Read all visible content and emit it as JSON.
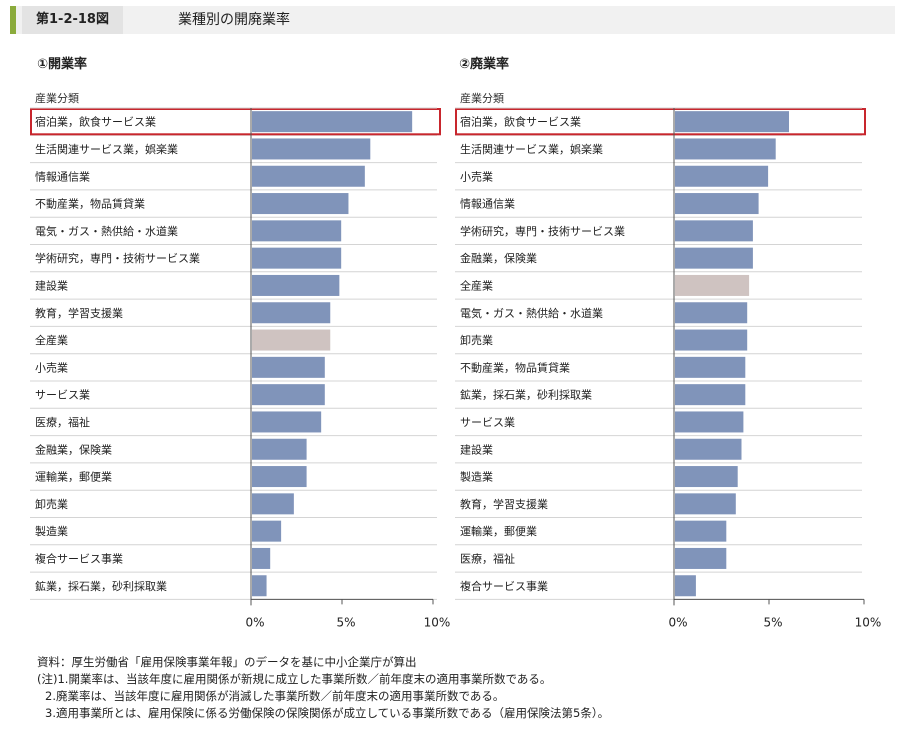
{
  "header": {
    "figure_number": "第1-2-18図",
    "title": "業種別の開廃業率"
  },
  "colors": {
    "bar": "#8094ba",
    "highlight_bar": "#cfc3c1",
    "highlight_box": "#c8262d",
    "header_accent": "#8bab3c"
  },
  "chart_data": [
    {
      "type": "bar",
      "orientation": "horizontal",
      "title": "①開業率",
      "category_header": "産業分類",
      "categories": [
        "宿泊業，飲食サービス業",
        "生活関連サービス業，娯楽業",
        "情報通信業",
        "不動産業，物品賃貸業",
        "電気・ガス・熱供給・水道業",
        "学術研究，専門・技術サービス業",
        "建設業",
        "教育，学習支援業",
        "全産業",
        "小売業",
        "サービス業",
        "医療，福祉",
        "金融業，保険業",
        "運輸業，郵便業",
        "卸売業",
        "製造業",
        "複合サービス事業",
        "鉱業，採石業，砂利採取業"
      ],
      "values": [
        8.8,
        6.5,
        6.2,
        5.3,
        4.9,
        4.9,
        4.8,
        4.3,
        4.3,
        4.0,
        4.0,
        3.8,
        3.0,
        3.0,
        2.3,
        1.6,
        1.0,
        0.8
      ],
      "highlight_category": "全産業",
      "boxed_category": "宿泊業，飲食サービス業",
      "xlim": [
        0,
        10
      ],
      "xticks": [
        "0%",
        "5%",
        "10%"
      ],
      "grid": "horizontal separators"
    },
    {
      "type": "bar",
      "orientation": "horizontal",
      "title": "②廃業率",
      "category_header": "産業分類",
      "categories": [
        "宿泊業，飲食サービス業",
        "生活関連サービス業，娯楽業",
        "小売業",
        "情報通信業",
        "学術研究，専門・技術サービス業",
        "金融業，保険業",
        "全産業",
        "電気・ガス・熱供給・水道業",
        "卸売業",
        "不動産業，物品賃貸業",
        "鉱業，採石業，砂利採取業",
        "サービス業",
        "建設業",
        "製造業",
        "教育，学習支援業",
        "運輸業，郵便業",
        "医療，福祉",
        "複合サービス事業"
      ],
      "values": [
        6.0,
        5.3,
        4.9,
        4.4,
        4.1,
        4.1,
        3.9,
        3.8,
        3.8,
        3.7,
        3.7,
        3.6,
        3.5,
        3.3,
        3.2,
        2.7,
        2.7,
        1.1
      ],
      "highlight_category": "全産業",
      "boxed_category": "宿泊業，飲食サービス業",
      "xlim": [
        0,
        10
      ],
      "xticks": [
        "0%",
        "5%",
        "10%"
      ],
      "grid": "horizontal separators"
    }
  ],
  "footnotes": [
    "資料：厚生労働省「雇用保険事業年報」のデータを基に中小企業庁が算出",
    "(注)1.開業率は、当該年度に雇用関係が新規に成立した事業所数／前年度末の適用事業所数である。",
    "2.廃業率は、当該年度に雇用関係が消滅した事業所数／前年度末の適用事業所数である。",
    "3.適用事業所とは、雇用保険に係る労働保険の保険関係が成立している事業所数である（雇用保険法第5条）。"
  ]
}
